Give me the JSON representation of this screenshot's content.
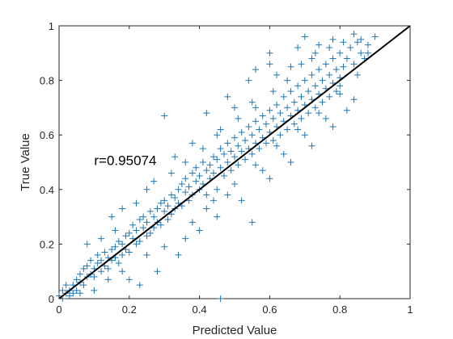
{
  "chart_data": {
    "type": "scatter",
    "title": "",
    "xlabel": "Predicted Value",
    "ylabel": "True Value",
    "xlim": [
      0,
      1
    ],
    "ylim": [
      0,
      1
    ],
    "xticks": [
      0,
      0.2,
      0.4,
      0.6,
      0.8,
      1
    ],
    "yticks": [
      0,
      0.2,
      0.4,
      0.6,
      0.8,
      1
    ],
    "tick_labels_x": [
      "0",
      "0.2",
      "0.4",
      "0.6",
      "0.8",
      "1"
    ],
    "tick_labels_y": [
      "0",
      "0.2",
      "0.4",
      "0.6",
      "0.8",
      "1"
    ],
    "grid": false,
    "legend": "none",
    "marker": "+",
    "marker_color": "#1f77b4",
    "fit_line_color": "#000000",
    "fit_line": {
      "x": [
        0,
        1
      ],
      "y": [
        0,
        1
      ]
    },
    "annotation": {
      "text": "r=0.95074",
      "x": 0.1,
      "y": 0.49
    },
    "correlation_r": 0.95074,
    "series": [
      {
        "values": [
          [
            0.0,
            0.01
          ],
          [
            0.01,
            0.03
          ],
          [
            0.01,
            0.0
          ],
          [
            0.02,
            0.02
          ],
          [
            0.02,
            0.05
          ],
          [
            0.03,
            0.03
          ],
          [
            0.03,
            0.01
          ],
          [
            0.04,
            0.05
          ],
          [
            0.04,
            0.02
          ],
          [
            0.05,
            0.07
          ],
          [
            0.05,
            0.03
          ],
          [
            0.06,
            0.06
          ],
          [
            0.06,
            0.09
          ],
          [
            0.07,
            0.05
          ],
          [
            0.07,
            0.11
          ],
          [
            0.08,
            0.08
          ],
          [
            0.08,
            0.12
          ],
          [
            0.09,
            0.09
          ],
          [
            0.09,
            0.14
          ],
          [
            0.1,
            0.11
          ],
          [
            0.1,
            0.08
          ],
          [
            0.11,
            0.13
          ],
          [
            0.11,
            0.16
          ],
          [
            0.12,
            0.1
          ],
          [
            0.12,
            0.14
          ],
          [
            0.13,
            0.12
          ],
          [
            0.13,
            0.17
          ],
          [
            0.14,
            0.15
          ],
          [
            0.14,
            0.11
          ],
          [
            0.15,
            0.18
          ],
          [
            0.15,
            0.14
          ],
          [
            0.16,
            0.19
          ],
          [
            0.16,
            0.15
          ],
          [
            0.17,
            0.21
          ],
          [
            0.17,
            0.13
          ],
          [
            0.18,
            0.2
          ],
          [
            0.18,
            0.16
          ],
          [
            0.19,
            0.23
          ],
          [
            0.19,
            0.18
          ],
          [
            0.2,
            0.24
          ],
          [
            0.2,
            0.17
          ],
          [
            0.21,
            0.22
          ],
          [
            0.21,
            0.27
          ],
          [
            0.22,
            0.2
          ],
          [
            0.22,
            0.25
          ],
          [
            0.23,
            0.29
          ],
          [
            0.23,
            0.21
          ],
          [
            0.24,
            0.26
          ],
          [
            0.24,
            0.3
          ],
          [
            0.25,
            0.23
          ],
          [
            0.25,
            0.28
          ],
          [
            0.26,
            0.32
          ],
          [
            0.26,
            0.24
          ],
          [
            0.27,
            0.3
          ],
          [
            0.27,
            0.26
          ],
          [
            0.28,
            0.33
          ],
          [
            0.28,
            0.28
          ],
          [
            0.29,
            0.35
          ],
          [
            0.29,
            0.27
          ],
          [
            0.3,
            0.32
          ],
          [
            0.3,
            0.36
          ],
          [
            0.31,
            0.29
          ],
          [
            0.31,
            0.34
          ],
          [
            0.32,
            0.38
          ],
          [
            0.32,
            0.31
          ],
          [
            0.33,
            0.37
          ],
          [
            0.33,
            0.33
          ],
          [
            0.34,
            0.4
          ],
          [
            0.34,
            0.35
          ],
          [
            0.35,
            0.42
          ],
          [
            0.35,
            0.34
          ],
          [
            0.36,
            0.39
          ],
          [
            0.36,
            0.44
          ],
          [
            0.37,
            0.36
          ],
          [
            0.37,
            0.41
          ],
          [
            0.38,
            0.46
          ],
          [
            0.38,
            0.38
          ],
          [
            0.39,
            0.43
          ],
          [
            0.39,
            0.48
          ],
          [
            0.4,
            0.4
          ],
          [
            0.4,
            0.45
          ],
          [
            0.41,
            0.5
          ],
          [
            0.41,
            0.42
          ],
          [
            0.42,
            0.47
          ],
          [
            0.42,
            0.38
          ],
          [
            0.43,
            0.49
          ],
          [
            0.43,
            0.44
          ],
          [
            0.44,
            0.52
          ],
          [
            0.44,
            0.46
          ],
          [
            0.45,
            0.4
          ],
          [
            0.45,
            0.51
          ],
          [
            0.46,
            0.48
          ],
          [
            0.46,
            0.55
          ],
          [
            0.47,
            0.45
          ],
          [
            0.47,
            0.53
          ],
          [
            0.48,
            0.5
          ],
          [
            0.48,
            0.57
          ],
          [
            0.49,
            0.47
          ],
          [
            0.49,
            0.54
          ],
          [
            0.5,
            0.52
          ],
          [
            0.5,
            0.59
          ],
          [
            0.51,
            0.49
          ],
          [
            0.51,
            0.56
          ],
          [
            0.52,
            0.54
          ],
          [
            0.52,
            0.61
          ],
          [
            0.53,
            0.51
          ],
          [
            0.53,
            0.58
          ],
          [
            0.54,
            0.55
          ],
          [
            0.54,
            0.63
          ],
          [
            0.55,
            0.53
          ],
          [
            0.55,
            0.6
          ],
          [
            0.56,
            0.57
          ],
          [
            0.56,
            0.65
          ],
          [
            0.57,
            0.55
          ],
          [
            0.57,
            0.62
          ],
          [
            0.58,
            0.59
          ],
          [
            0.58,
            0.67
          ],
          [
            0.59,
            0.57
          ],
          [
            0.59,
            0.64
          ],
          [
            0.6,
            0.61
          ],
          [
            0.6,
            0.69
          ],
          [
            0.61,
            0.58
          ],
          [
            0.61,
            0.66
          ],
          [
            0.62,
            0.63
          ],
          [
            0.62,
            0.71
          ],
          [
            0.63,
            0.6
          ],
          [
            0.63,
            0.68
          ],
          [
            0.64,
            0.65
          ],
          [
            0.64,
            0.74
          ],
          [
            0.65,
            0.62
          ],
          [
            0.65,
            0.7
          ],
          [
            0.66,
            0.67
          ],
          [
            0.66,
            0.76
          ],
          [
            0.67,
            0.64
          ],
          [
            0.67,
            0.72
          ],
          [
            0.68,
            0.69
          ],
          [
            0.68,
            0.78
          ],
          [
            0.69,
            0.66
          ],
          [
            0.69,
            0.74
          ],
          [
            0.7,
            0.71
          ],
          [
            0.7,
            0.8
          ],
          [
            0.71,
            0.68
          ],
          [
            0.71,
            0.76
          ],
          [
            0.72,
            0.73
          ],
          [
            0.72,
            0.82
          ],
          [
            0.73,
            0.7
          ],
          [
            0.73,
            0.78
          ],
          [
            0.74,
            0.75
          ],
          [
            0.74,
            0.84
          ],
          [
            0.75,
            0.72
          ],
          [
            0.75,
            0.8
          ],
          [
            0.76,
            0.77
          ],
          [
            0.76,
            0.86
          ],
          [
            0.77,
            0.74
          ],
          [
            0.77,
            0.82
          ],
          [
            0.78,
            0.79
          ],
          [
            0.78,
            0.88
          ],
          [
            0.79,
            0.76
          ],
          [
            0.79,
            0.84
          ],
          [
            0.8,
            0.81
          ],
          [
            0.8,
            0.9
          ],
          [
            0.81,
            0.85
          ],
          [
            0.82,
            0.88
          ],
          [
            0.83,
            0.92
          ],
          [
            0.84,
            0.86
          ],
          [
            0.85,
            0.94
          ],
          [
            0.86,
            0.9
          ],
          [
            0.87,
            0.88
          ],
          [
            0.88,
            0.93
          ],
          [
            0.9,
            0.96
          ],
          [
            0.3,
            0.67
          ],
          [
            0.56,
            0.84
          ],
          [
            0.6,
            0.9
          ],
          [
            0.66,
            0.85
          ],
          [
            0.74,
            0.93
          ],
          [
            0.7,
            0.96
          ],
          [
            0.55,
            0.72
          ],
          [
            0.45,
            0.6
          ],
          [
            0.38,
            0.57
          ],
          [
            0.33,
            0.52
          ],
          [
            0.18,
            0.33
          ],
          [
            0.15,
            0.3
          ],
          [
            0.25,
            0.4
          ],
          [
            0.12,
            0.22
          ],
          [
            0.08,
            0.2
          ],
          [
            0.5,
            0.7
          ],
          [
            0.62,
            0.82
          ],
          [
            0.68,
            0.92
          ],
          [
            0.72,
            0.88
          ],
          [
            0.78,
            0.95
          ],
          [
            0.34,
            0.16
          ],
          [
            0.4,
            0.25
          ],
          [
            0.45,
            0.3
          ],
          [
            0.52,
            0.36
          ],
          [
            0.6,
            0.44
          ],
          [
            0.66,
            0.5
          ],
          [
            0.72,
            0.56
          ],
          [
            0.78,
            0.63
          ],
          [
            0.82,
            0.69
          ],
          [
            0.84,
            0.73
          ],
          [
            0.23,
            0.05
          ],
          [
            0.46,
            0.0
          ],
          [
            0.55,
            0.28
          ],
          [
            0.2,
            0.07
          ],
          [
            0.28,
            0.1
          ],
          [
            0.36,
            0.22
          ],
          [
            0.42,
            0.33
          ],
          [
            0.48,
            0.38
          ],
          [
            0.58,
            0.47
          ],
          [
            0.64,
            0.53
          ],
          [
            0.7,
            0.6
          ],
          [
            0.76,
            0.66
          ],
          [
            0.8,
            0.75
          ],
          [
            0.1,
            0.03
          ],
          [
            0.14,
            0.07
          ],
          [
            0.06,
            0.02
          ],
          [
            0.18,
            0.1
          ],
          [
            0.25,
            0.16
          ],
          [
            0.3,
            0.19
          ],
          [
            0.38,
            0.28
          ],
          [
            0.44,
            0.36
          ],
          [
            0.5,
            0.42
          ],
          [
            0.56,
            0.49
          ],
          [
            0.62,
            0.56
          ],
          [
            0.68,
            0.62
          ],
          [
            0.74,
            0.68
          ],
          [
            0.8,
            0.78
          ],
          [
            0.85,
            0.82
          ],
          [
            0.88,
            0.9
          ],
          [
            0.86,
            0.95
          ],
          [
            0.16,
            0.25
          ],
          [
            0.22,
            0.35
          ],
          [
            0.27,
            0.43
          ],
          [
            0.32,
            0.46
          ],
          [
            0.36,
            0.5
          ],
          [
            0.41,
            0.55
          ],
          [
            0.46,
            0.62
          ],
          [
            0.51,
            0.66
          ],
          [
            0.56,
            0.7
          ],
          [
            0.61,
            0.76
          ],
          [
            0.65,
            0.8
          ],
          [
            0.69,
            0.86
          ],
          [
            0.73,
            0.9
          ],
          [
            0.77,
            0.92
          ],
          [
            0.81,
            0.94
          ],
          [
            0.84,
            0.97
          ],
          [
            0.6,
            0.86
          ],
          [
            0.54,
            0.8
          ],
          [
            0.48,
            0.74
          ],
          [
            0.42,
            0.68
          ]
        ]
      }
    ]
  }
}
